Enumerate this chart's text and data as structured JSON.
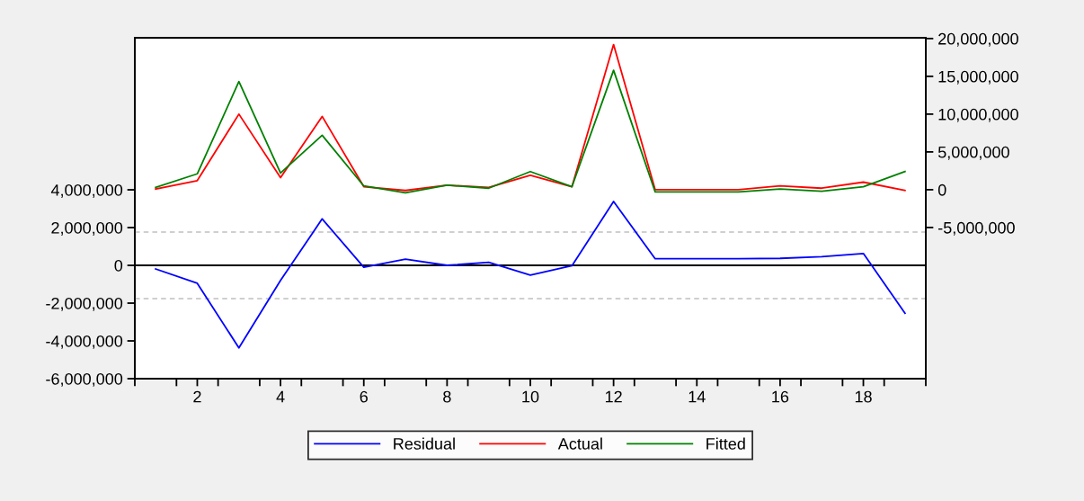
{
  "chart_data": {
    "type": "line",
    "x": [
      1,
      2,
      3,
      4,
      5,
      6,
      7,
      8,
      9,
      10,
      11,
      12,
      13,
      14,
      15,
      16,
      17,
      18,
      19
    ],
    "series": [
      {
        "name": "Residual",
        "color": "#0000ff",
        "axis": "y",
        "values": [
          -190000,
          -950000,
          -4370000,
          -800000,
          2460000,
          -100000,
          330000,
          0,
          160000,
          -520000,
          -20000,
          3380000,
          350000,
          350000,
          350000,
          370000,
          460000,
          630000,
          -2540000
        ]
      },
      {
        "name": "Actual",
        "color": "#ff0000",
        "axis": "y2",
        "values": [
          100000,
          1200000,
          10000000,
          1600000,
          9700000,
          400000,
          -100000,
          600000,
          300000,
          1900000,
          400000,
          19200000,
          0,
          0,
          0,
          500000,
          200000,
          1000000,
          -100000
        ]
      },
      {
        "name": "Fitted",
        "color": "#008000",
        "axis": "y2",
        "values": [
          300000,
          2100000,
          14300000,
          2200000,
          7200000,
          500000,
          -400000,
          600000,
          200000,
          2400000,
          400000,
          15800000,
          -300000,
          -300000,
          -300000,
          100000,
          -200000,
          400000,
          2400000
        ]
      }
    ],
    "xlim": [
      0.5,
      19.5
    ],
    "xticks": [
      {
        "value": 0.5,
        "label": null
      },
      {
        "value": 1.5,
        "label": null
      },
      2,
      {
        "value": 2.5,
        "label": null
      },
      {
        "value": 3.5,
        "label": null
      },
      4,
      {
        "value": 4.5,
        "label": null
      },
      {
        "value": 5.5,
        "label": null
      },
      6,
      {
        "value": 6.5,
        "label": null
      },
      {
        "value": 7.5,
        "label": null
      },
      8,
      {
        "value": 8.5,
        "label": null
      },
      {
        "value": 9.5,
        "label": null
      },
      10,
      {
        "value": 10.5,
        "label": null
      },
      {
        "value": 11.5,
        "label": null
      },
      12,
      {
        "value": 12.5,
        "label": null
      },
      {
        "value": 13.5,
        "label": null
      },
      14,
      {
        "value": 14.5,
        "label": null
      },
      {
        "value": 15.5,
        "label": null
      },
      16,
      {
        "value": 16.5,
        "label": null
      },
      {
        "value": 17.5,
        "label": null
      },
      18,
      {
        "value": 18.5,
        "label": null
      },
      {
        "value": 19.5,
        "label": null
      }
    ],
    "ylim": [
      -6000000,
      12050000
    ],
    "yticks": [
      {
        "value": -6000000,
        "label": "-6,000,000"
      },
      {
        "value": -4000000,
        "label": "-4,000,000"
      },
      {
        "value": -2000000,
        "label": "-2,000,000"
      },
      0,
      {
        "value": 2000000,
        "label": "2,000,000"
      },
      {
        "value": 4000000,
        "label": "4,000,000"
      }
    ],
    "y2lim": [
      -25000000,
      20100000
    ],
    "y2ticks": [
      {
        "value": -5000000,
        "label": "-5,000,000"
      },
      0,
      {
        "value": 5000000,
        "label": "5,000,000"
      },
      {
        "value": 10000000,
        "label": "10,000,000"
      },
      {
        "value": 15000000,
        "label": "15,000,000"
      },
      {
        "value": 20000000,
        "label": "20,000,000"
      }
    ],
    "ref_lines": [
      {
        "axis": "y",
        "value": 0,
        "color": "#000000",
        "line_style": "solid"
      },
      {
        "axis": "y",
        "value": 1760000,
        "color": "#c0c0c0",
        "line_style": "dashed"
      },
      {
        "axis": "y",
        "value": -1760000,
        "color": "#c0c0c0",
        "line_style": "dashed"
      }
    ],
    "grid": false,
    "legend": "bottom",
    "marker": "none",
    "line_style": "solid"
  }
}
